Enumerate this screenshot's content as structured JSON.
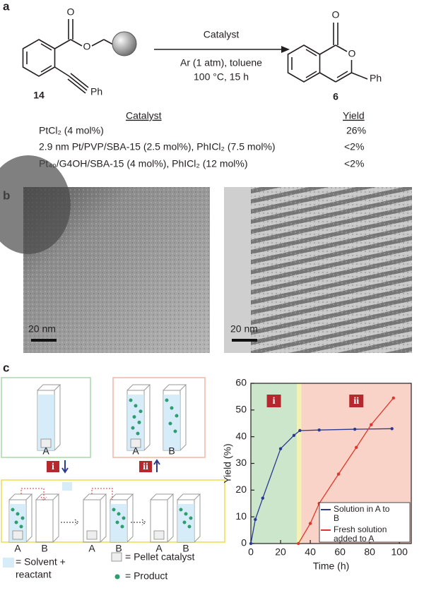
{
  "panel_labels": [
    "a",
    "b",
    "c"
  ],
  "scheme": {
    "reactant_carbonyl_o": "O",
    "reactant_ester_o": "O",
    "reactant_ph": "Ph",
    "reactant_label": "14",
    "conditions": [
      "Catalyst",
      "Ar (1 atm), toluene",
      "100 °C, 15 h"
    ],
    "product_carbonyl_o": "O",
    "product_ring_o": "O",
    "product_ph": "Ph",
    "product_label": "6"
  },
  "table": {
    "header": [
      "Catalyst",
      "Yield"
    ],
    "rows": [
      [
        "PtCl₂ (4 mol%)",
        "26%"
      ],
      [
        "2.9 nm Pt/PVP/SBA-15 (2.5 mol%), PhICl₂ (7.5 mol%)",
        "<2%"
      ],
      [
        "Pt₄₀/G4OH/SBA-15 (4 mol%), PhICl₂ (12 mol%)",
        "<2%"
      ]
    ]
  },
  "tem": {
    "scale_bars": [
      "20 nm",
      "20 nm"
    ]
  },
  "diagram": {
    "vessels": [
      "A",
      "A",
      "B",
      "A",
      "B",
      "A",
      "B",
      "A",
      "B"
    ],
    "steps": [
      "i",
      "ii"
    ],
    "legend": [
      "= Solvent +",
      "reactant",
      "= Pellet catalyst",
      "= Product"
    ]
  },
  "chart_data": {
    "type": "line",
    "x_label": "Time (h)",
    "y_label": "Yield (%)",
    "xlim": [
      0,
      108
    ],
    "ylim": [
      0,
      60
    ],
    "xticks": [
      0,
      20,
      40,
      60,
      80,
      100
    ],
    "yticks": [
      0,
      10,
      20,
      30,
      40,
      50,
      60
    ],
    "grid": false,
    "regions": [
      {
        "label": "i",
        "start": 0,
        "end": 31,
        "color": "#cce6cc"
      },
      {
        "start": 31,
        "end": 34,
        "color": "#f3f2b3"
      },
      {
        "label": "ii",
        "start": 34,
        "end": 108,
        "color": "#f9d3c8"
      }
    ],
    "legend_position": "lower right",
    "series": [
      {
        "name": "Solution in A to B",
        "color": "#2b3990",
        "x": [
          0,
          3,
          8,
          20,
          29,
          33,
          46,
          70,
          95
        ],
        "values": [
          0,
          9,
          17,
          35.5,
          40.5,
          42.3,
          42.5,
          42.8,
          43
        ]
      },
      {
        "name": "Fresh solution added to A",
        "color": "#e0362c",
        "x": [
          32,
          40,
          46,
          59,
          71,
          81,
          96
        ],
        "values": [
          0,
          7.5,
          15,
          26,
          36,
          44.5,
          54.5
        ]
      }
    ]
  }
}
